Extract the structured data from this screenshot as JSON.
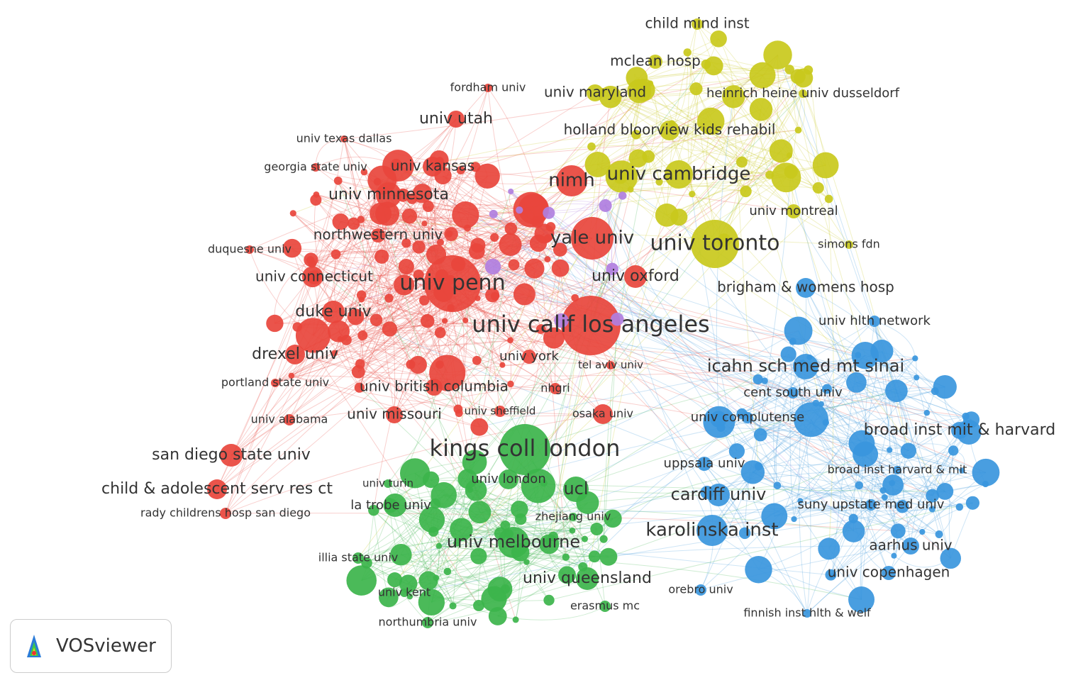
{
  "clusters": [
    {
      "color": "#e8453c",
      "nodes": [
        "univ utah",
        "univ texas dallas",
        "georgia state univ",
        "univ kansas",
        "univ minnesota",
        "nimh",
        "northwestern univ",
        "duquesne univ",
        "yale univ",
        "univ connecticut",
        "univ penn",
        "univ oxford",
        "duke univ",
        "univ calif los angeles",
        "drexel univ",
        "portland state univ",
        "univ british columbia",
        "nhgri",
        "univ missouri",
        "univ alabama",
        "univ sheffield",
        "osaka univ",
        "san diego state univ",
        "child & adolescent serv res ct",
        "rady childrens hosp san diego",
        "fordham univ",
        "univ york",
        "tel aviv univ"
      ]
    },
    {
      "color": "#c9c91c",
      "nodes": [
        "child mind inst",
        "mclean hosp",
        "univ maryland",
        "heinrich heine univ dusseldorf",
        "holland bloorview kids rehabil",
        "univ cambridge",
        "univ montreal",
        "univ toronto",
        "simons fdn"
      ]
    },
    {
      "color": "#3a96dd",
      "nodes": [
        "brigham & womens hosp",
        "univ hlth network",
        "icahn sch med mt sinai",
        "cent south univ",
        "univ complutense",
        "broad inst mit & harvard",
        "uppsala univ",
        "broad inst harvard & mit",
        "cardiff univ",
        "suny upstate med univ",
        "karolinska inst",
        "aarhus univ",
        "univ copenhagen",
        "orebro univ",
        "finnish inst hlth & welf"
      ]
    },
    {
      "color": "#3cb44b",
      "nodes": [
        "kings coll london",
        "univ london",
        "ucl",
        "univ turin",
        "la trobe univ",
        "zhejiang univ",
        "univ melbourne",
        "illia state univ",
        "univ queensland",
        "univ kent",
        "erasmus mc",
        "northumbria univ"
      ]
    },
    {
      "color": "#b07fe0",
      "nodes": []
    }
  ],
  "logo": "VOSviewer"
}
